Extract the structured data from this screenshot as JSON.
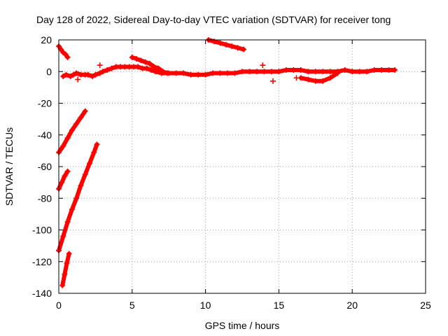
{
  "chart_data": {
    "type": "scatter",
    "title": "Day 128 of 2022, Sidereal Day-to-day VTEC variation (SDTVAR) for receiver tong",
    "xlabel": "GPS time / hours",
    "ylabel": "SDTVAR / TECUs",
    "xlim": [
      0,
      25
    ],
    "ylim": [
      -140,
      20
    ],
    "xticks": [
      0,
      5,
      10,
      15,
      20,
      25
    ],
    "yticks": [
      -140,
      -120,
      -100,
      -80,
      -60,
      -40,
      -20,
      0,
      20
    ],
    "grid": true,
    "legend": "none",
    "marker": "plus",
    "color": "#ff0000",
    "series": [
      {
        "name": "arc-near-zero-main",
        "x": [
          0.3,
          0.5,
          0.8,
          1.0,
          1.2,
          1.5,
          1.8,
          2.0,
          2.3,
          2.5,
          2.8,
          3.0,
          3.3,
          3.6,
          3.9,
          4.2,
          4.5,
          4.8,
          5.1,
          5.4,
          5.7,
          6.0,
          6.3,
          6.6,
          7.0,
          7.5,
          8.0,
          8.5,
          9.0,
          9.5,
          10.0,
          10.5,
          11.0,
          11.5,
          12.0,
          12.5,
          13.0,
          13.5,
          14.0,
          14.5,
          15.0,
          15.5,
          16.0,
          16.5,
          17.0,
          17.5,
          18.0,
          18.5,
          19.0,
          19.5,
          20.0,
          20.5,
          21.0,
          21.5,
          22.0,
          22.5,
          22.9
        ],
        "y": [
          -3,
          -2,
          -3,
          -2,
          -1,
          -2,
          -2,
          -2,
          -3,
          -2,
          -1,
          0,
          1,
          2,
          3,
          3,
          3,
          3,
          3,
          3,
          2,
          2,
          1,
          0,
          -1,
          -1,
          -1,
          -1,
          -2,
          -2,
          -2,
          -1,
          -1,
          -1,
          -1,
          0,
          0,
          0,
          0,
          0,
          0,
          1,
          1,
          1,
          0,
          0,
          0,
          0,
          0,
          1,
          0,
          0,
          0,
          1,
          1,
          1,
          1
        ]
      },
      {
        "name": "arc-hump-5-7h",
        "x": [
          5.0,
          5.3,
          5.6,
          5.9,
          6.2,
          6.5,
          6.8,
          7.1,
          7.4
        ],
        "y": [
          9,
          8,
          7,
          6,
          5,
          3,
          2,
          0,
          -1
        ]
      },
      {
        "name": "arc-near-start",
        "x": [
          0.0,
          0.15,
          0.3,
          0.45,
          0.6
        ],
        "y": [
          16,
          14,
          12,
          11,
          9
        ]
      },
      {
        "name": "arc-10-12h",
        "x": [
          10.2,
          10.6,
          11.0,
          11.4,
          11.8,
          12.2,
          12.6
        ],
        "y": [
          20,
          19,
          18,
          17,
          16,
          15,
          14
        ]
      },
      {
        "name": "arc-dip-17-19h",
        "x": [
          16.5,
          17.0,
          17.5,
          18.0,
          18.5,
          19.0
        ],
        "y": [
          -4,
          -5,
          -6,
          -6,
          -4,
          -1
        ]
      },
      {
        "name": "arc-rise-a",
        "x": [
          0.0,
          0.3,
          0.6,
          0.9,
          1.2,
          1.5,
          1.8
        ],
        "y": [
          -51,
          -47,
          -42,
          -37,
          -33,
          -29,
          -25
        ]
      },
      {
        "name": "arc-rise-b",
        "x": [
          0.0,
          0.2,
          0.4,
          0.6
        ],
        "y": [
          -74,
          -70,
          -66,
          -63
        ]
      },
      {
        "name": "arc-rise-c",
        "x": [
          0.0,
          0.3,
          0.6,
          0.9,
          1.2,
          1.5,
          1.8,
          2.1,
          2.4,
          2.6
        ],
        "y": [
          -113,
          -104,
          -95,
          -87,
          -80,
          -72,
          -65,
          -58,
          -51,
          -46
        ]
      },
      {
        "name": "arc-rise-d",
        "x": [
          0.25,
          0.4,
          0.55,
          0.7
        ],
        "y": [
          -135,
          -128,
          -121,
          -115
        ]
      }
    ],
    "outliers": [
      {
        "x": 1.3,
        "y": -5
      },
      {
        "x": 2.8,
        "y": 4
      },
      {
        "x": 13.9,
        "y": 4
      },
      {
        "x": 14.6,
        "y": -6
      },
      {
        "x": 16.2,
        "y": -4
      }
    ]
  }
}
